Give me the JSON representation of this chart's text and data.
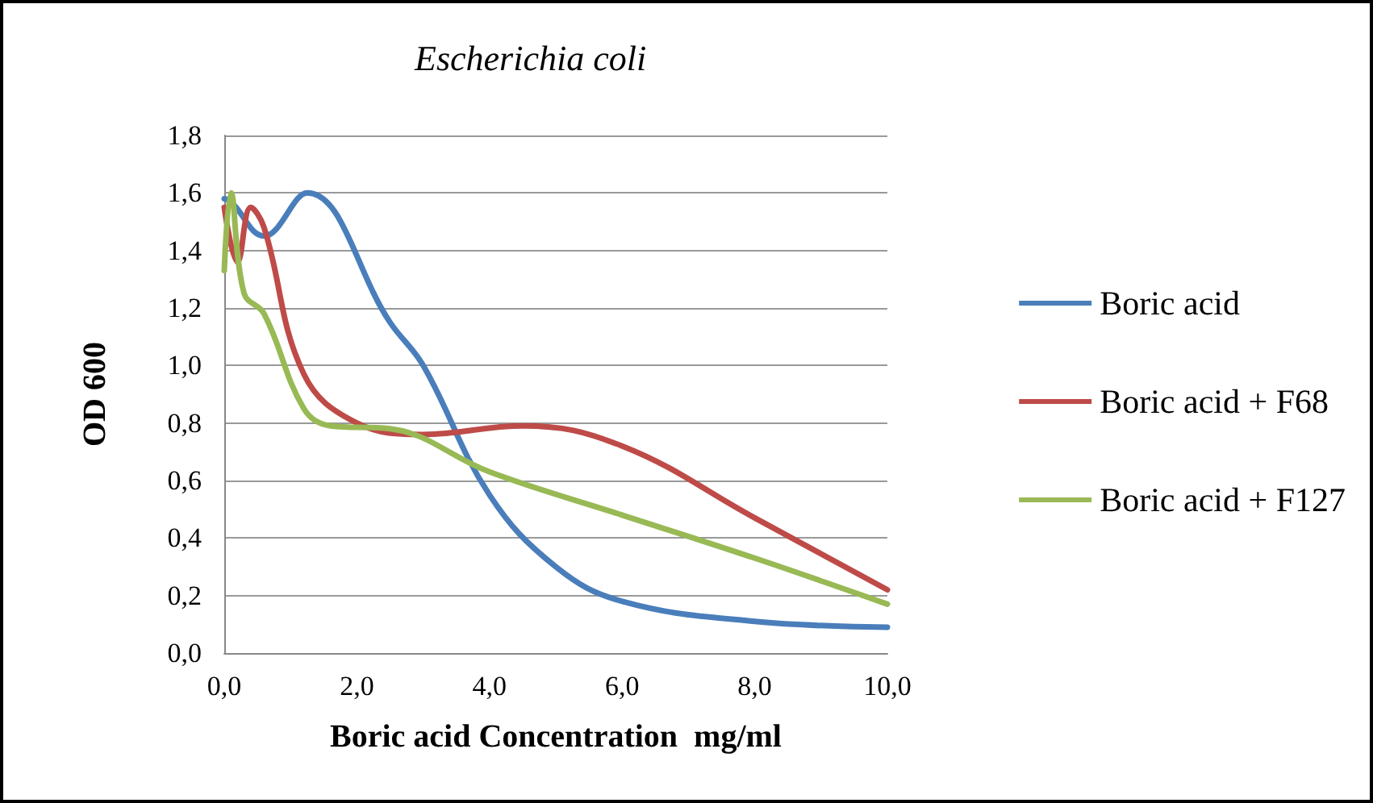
{
  "chart_data": {
    "type": "line",
    "title": "Escherichia coli",
    "xlabel": "Boric acid Concentration  mg/ml",
    "ylabel": "OD 600",
    "xlim": [
      0,
      10
    ],
    "xticks": [
      {
        "value": 0,
        "label": "0,0"
      },
      {
        "value": 2,
        "label": "2,0"
      },
      {
        "value": 4,
        "label": "4,0"
      },
      {
        "value": 6,
        "label": "6,0"
      },
      {
        "value": 8,
        "label": "8,0"
      },
      {
        "value": 10,
        "label": "10,0"
      }
    ],
    "ylim": [
      0,
      1.8
    ],
    "yticks": [
      {
        "value": 0,
        "label": "0,0"
      },
      {
        "value": 0.2,
        "label": "0,2"
      },
      {
        "value": 0.4,
        "label": "0,4"
      },
      {
        "value": 0.6,
        "label": "0,6"
      },
      {
        "value": 0.8,
        "label": "0,8"
      },
      {
        "value": 1.0,
        "label": "1,0"
      },
      {
        "value": 1.2,
        "label": "1,2"
      },
      {
        "value": 1.4,
        "label": "1,4"
      },
      {
        "value": 1.6,
        "label": "1,6"
      },
      {
        "value": 1.8,
        "label": "1,8"
      }
    ],
    "grid": "y",
    "legend": "right",
    "marker": "none",
    "line_style": "solid",
    "series": [
      {
        "name": "Boric acid",
        "color": "#4a7ebb",
        "x": [
          0,
          0.1,
          0.6,
          1.25,
          2.5,
          3,
          4,
          5,
          6,
          8,
          10
        ],
        "values": [
          1.58,
          1.57,
          1.45,
          1.6,
          1.15,
          1.0,
          0.55,
          0.3,
          0.18,
          0.11,
          0.09
        ]
      },
      {
        "name": "Boric acid + F68",
        "color": "#be4b48",
        "x": [
          0,
          0.2,
          0.4,
          0.6,
          1.2,
          2,
          3,
          4.5,
          6,
          8,
          10
        ],
        "values": [
          1.55,
          1.36,
          1.55,
          1.48,
          0.97,
          0.8,
          0.76,
          0.79,
          0.72,
          0.47,
          0.22
        ]
      },
      {
        "name": "Boric acid + F127",
        "color": "#98b954",
        "x": [
          0,
          0.1,
          0.3,
          0.6,
          1.2,
          1.6,
          2.5,
          4,
          6,
          8,
          10
        ],
        "values": [
          1.33,
          1.6,
          1.25,
          1.18,
          0.85,
          0.79,
          0.78,
          0.63,
          0.48,
          0.33,
          0.17
        ]
      }
    ]
  }
}
